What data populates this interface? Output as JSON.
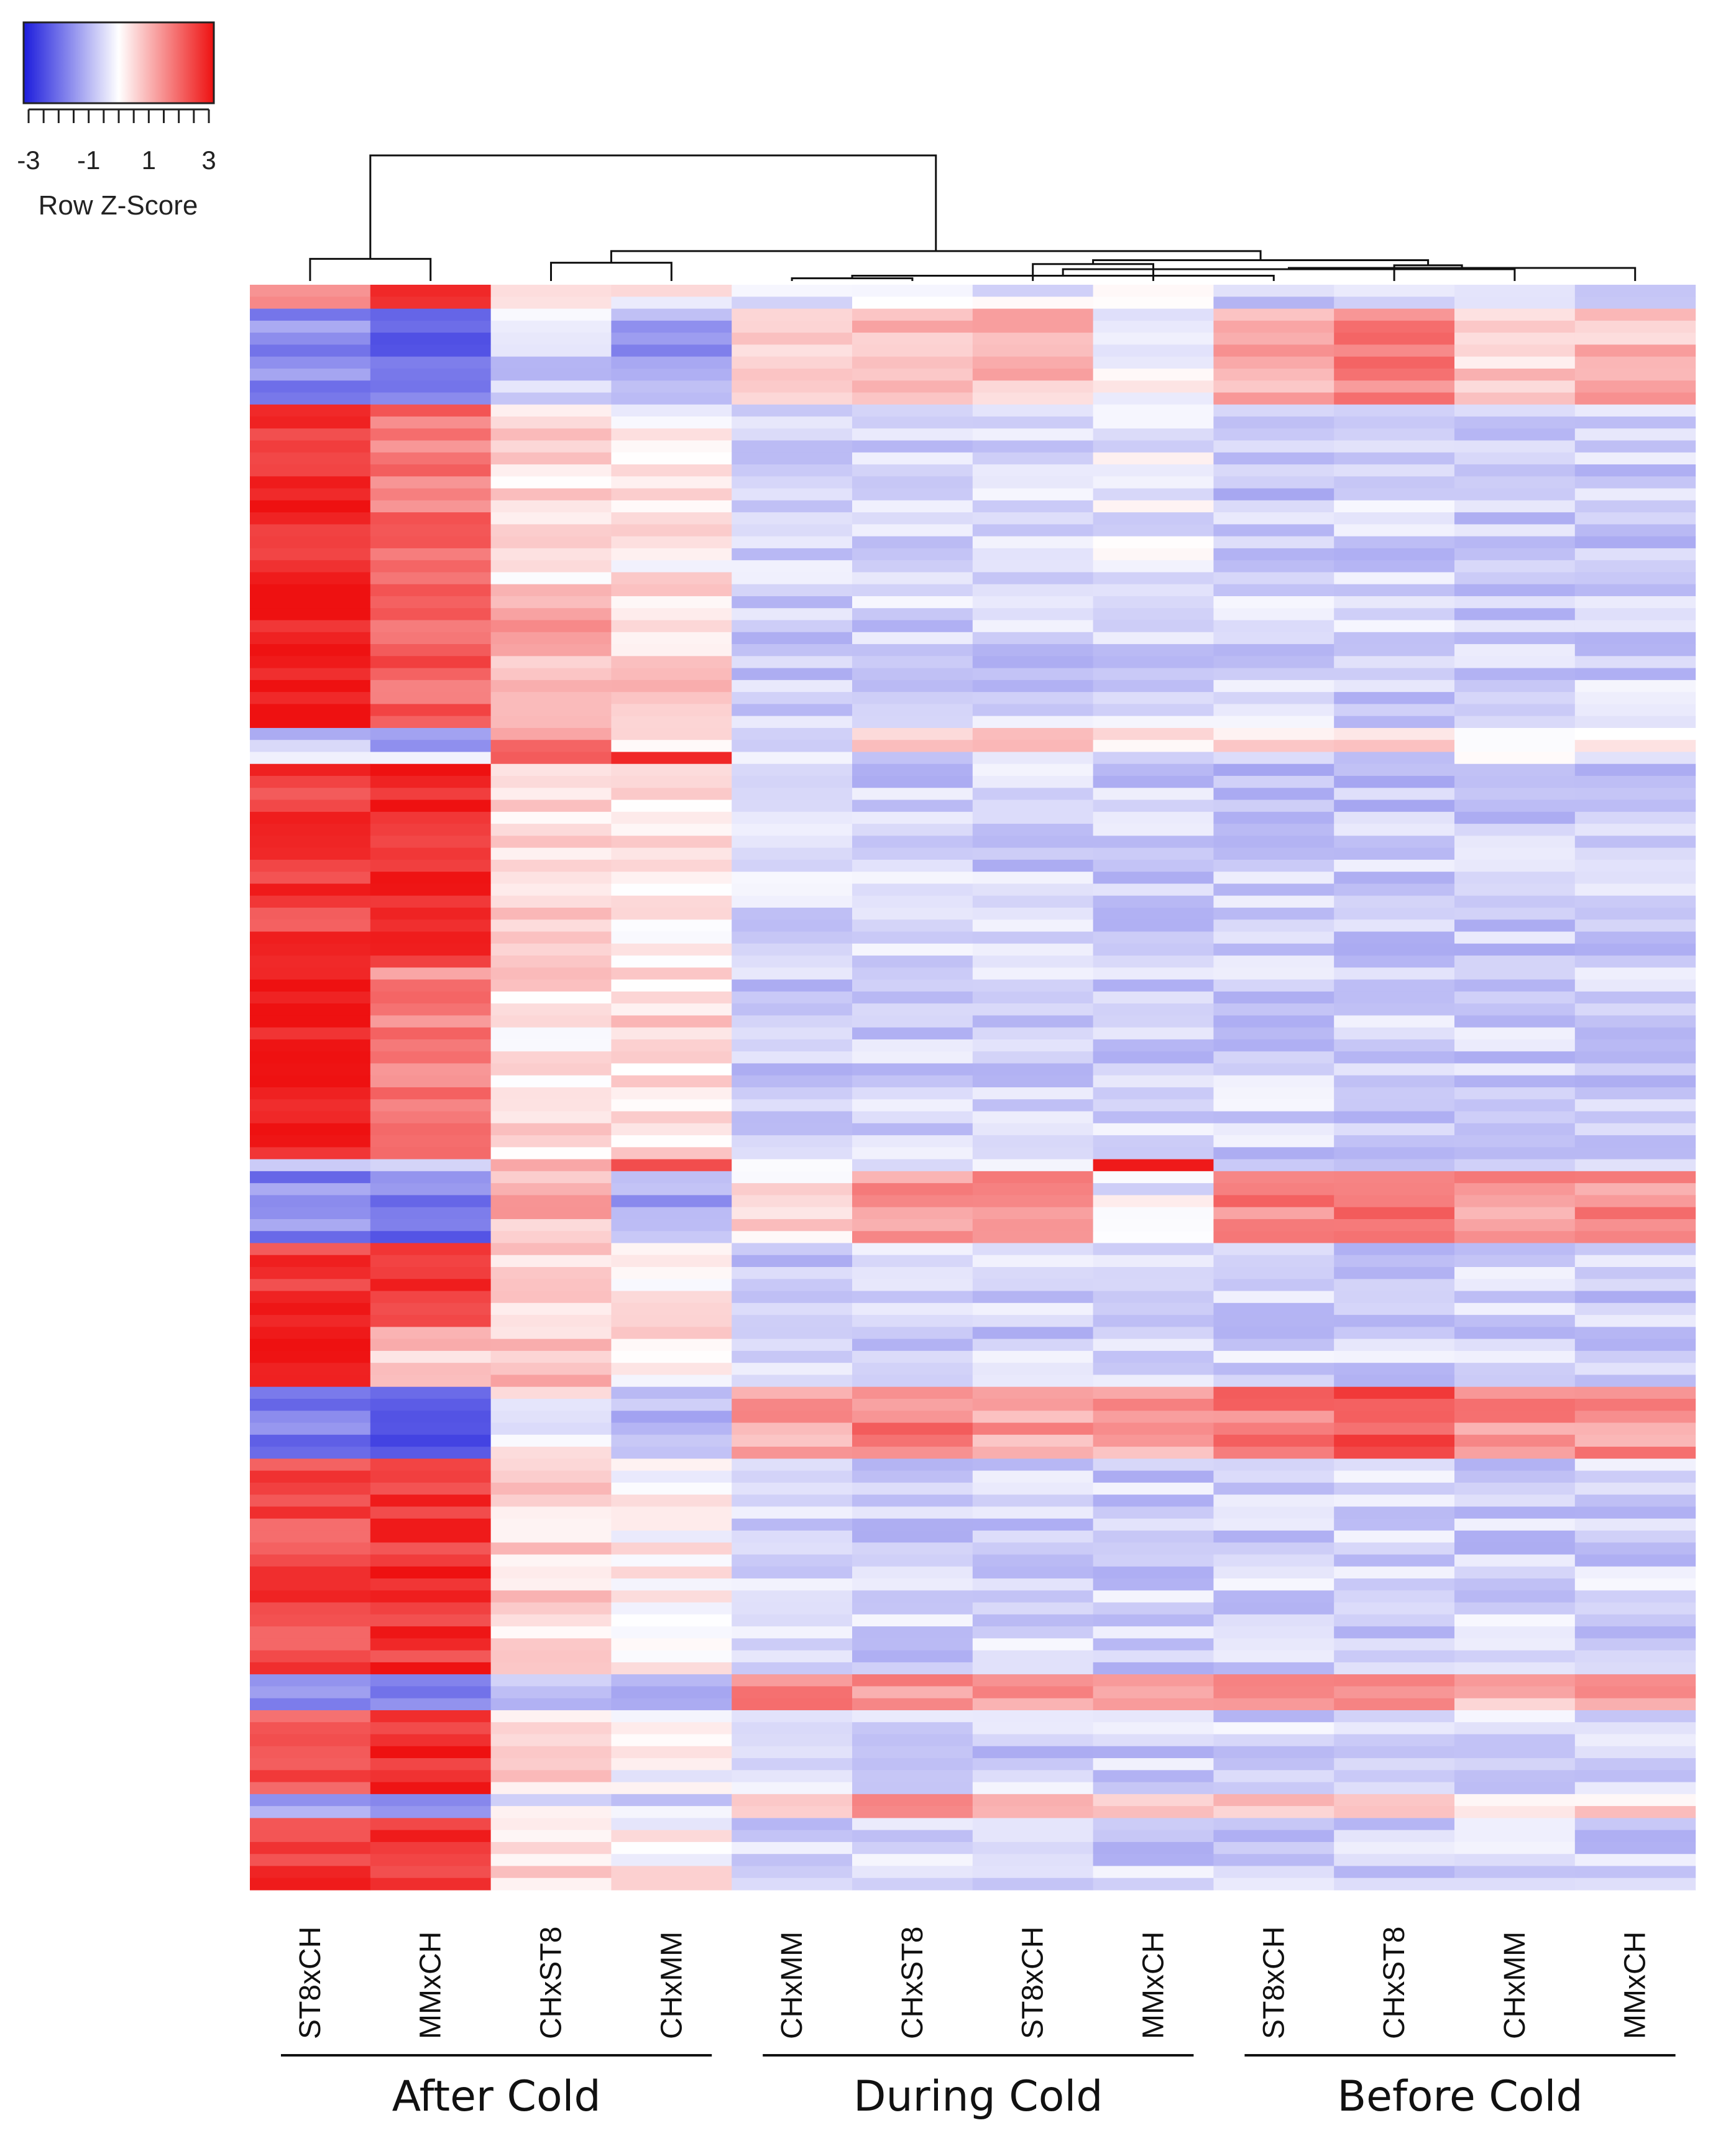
{
  "chart_data": {
    "type": "heatmap",
    "title": "",
    "color_key": {
      "title": "Row Z-Score",
      "tick_labels": [
        "-3",
        "-1",
        "1",
        "3"
      ],
      "ticks": [
        -3,
        -1,
        1,
        3
      ],
      "range": [
        -3,
        3
      ],
      "low_color": "#1c1cdc",
      "mid_color": "#ffffff",
      "high_color": "#ee1111"
    },
    "columns": [
      "ST8xCH",
      "MMxCH",
      "CHxST8",
      "CHxMM",
      "CHxMM",
      "CHxST8",
      "ST8xCH",
      "MMxCH",
      "ST8xCH",
      "CHxST8",
      "CHxMM",
      "MMxCH"
    ],
    "groups": [
      {
        "label": "After Cold",
        "columns": [
          0,
          1,
          2,
          3
        ]
      },
      {
        "label": "During Cold",
        "columns": [
          4,
          5,
          6,
          7
        ]
      },
      {
        "label": "Before Cold",
        "columns": [
          8,
          9,
          10,
          11
        ]
      }
    ],
    "row_count": 134,
    "blocks": [
      {
        "rows": [
          0,
          2
        ],
        "values": [
          1.2,
          2.9,
          0.3,
          0.0,
          -0.3,
          -0.3,
          -0.3,
          -0.3,
          -0.6,
          -0.6,
          -0.6,
          -0.6
        ]
      },
      {
        "rows": [
          2,
          10
        ],
        "values": [
          -1.6,
          -1.9,
          -0.5,
          -1.2,
          0.6,
          0.8,
          0.9,
          -0.1,
          1.1,
          1.5,
          0.5,
          0.9
        ]
      },
      {
        "rows": [
          10,
          25
        ],
        "values": [
          2.6,
          1.8,
          0.4,
          0.2,
          -0.5,
          -0.6,
          -0.5,
          -0.3,
          -0.7,
          -0.6,
          -0.6,
          -0.7
        ]
      },
      {
        "rows": [
          25,
          37
        ],
        "values": [
          2.9,
          2.0,
          1.0,
          0.6,
          -0.6,
          -0.6,
          -0.6,
          -0.6,
          -0.6,
          -0.6,
          -0.6,
          -0.6
        ]
      },
      {
        "rows": [
          37,
          39
        ],
        "values": [
          -0.9,
          -1.2,
          1.5,
          0.2,
          -0.4,
          0.9,
          1.2,
          0.2,
          0.5,
          0.8,
          -0.3,
          0.2
        ]
      },
      {
        "rows": [
          39,
          39
        ],
        "values": [
          -0.4,
          -0.6,
          1.8,
          2.9,
          -0.4,
          -0.4,
          -0.4,
          -0.4,
          -0.4,
          -0.4,
          -0.4,
          -0.4
        ]
      },
      {
        "rows": [
          39,
          50
        ],
        "values": [
          2.5,
          2.8,
          0.4,
          0.2,
          -0.6,
          -0.6,
          -0.6,
          -0.6,
          -0.7,
          -0.7,
          -0.7,
          -0.7
        ]
      },
      {
        "rows": [
          50,
          56
        ],
        "values": [
          2.4,
          2.6,
          0.5,
          0.1,
          -0.6,
          -0.6,
          -0.6,
          -0.6,
          -0.7,
          -0.7,
          -0.7,
          -0.7
        ]
      },
      {
        "rows": [
          56,
          72
        ],
        "values": [
          3.0,
          1.6,
          0.4,
          0.5,
          -0.6,
          -0.6,
          -0.6,
          -0.6,
          -0.6,
          -0.6,
          -0.6,
          -0.6
        ]
      },
      {
        "rows": [
          72,
          73
        ],
        "values": [
          -0.3,
          -0.6,
          1.2,
          2.4,
          -0.3,
          -0.3,
          -0.3,
          2.8,
          -0.4,
          -0.4,
          -0.4,
          -0.4
        ]
      },
      {
        "rows": [
          73,
          79
        ],
        "values": [
          -1.6,
          -1.8,
          0.9,
          -1.2,
          0.4,
          1.4,
          1.3,
          -0.2,
          1.6,
          1.8,
          1.2,
          1.4
        ]
      },
      {
        "rows": [
          79,
          86
        ],
        "values": [
          2.5,
          2.4,
          0.7,
          0.2,
          -0.6,
          -0.6,
          -0.6,
          -0.6,
          -0.6,
          -0.6,
          -0.6,
          -0.6
        ]
      },
      {
        "rows": [
          86,
          91
        ],
        "values": [
          3.0,
          0.6,
          0.8,
          0.3,
          -0.6,
          -0.6,
          -0.6,
          -0.6,
          -0.6,
          -0.6,
          -0.6,
          -0.6
        ]
      },
      {
        "rows": [
          91,
          97
        ],
        "values": [
          -1.7,
          -2.1,
          0.0,
          -1.0,
          1.1,
          1.6,
          1.2,
          1.2,
          1.6,
          2.2,
          1.4,
          1.4
        ]
      },
      {
        "rows": [
          97,
          115
        ],
        "values": [
          2.3,
          2.6,
          0.5,
          0.2,
          -0.6,
          -0.6,
          -0.6,
          -0.6,
          -0.6,
          -0.6,
          -0.6,
          -0.6
        ]
      },
      {
        "rows": [
          115,
          118
        ],
        "values": [
          -1.6,
          -1.8,
          -0.6,
          -0.9,
          1.4,
          1.3,
          1.1,
          1.0,
          1.3,
          1.8,
          1.0,
          1.2
        ]
      },
      {
        "rows": [
          118,
          125
        ],
        "values": [
          2.2,
          2.7,
          0.4,
          0.1,
          -0.6,
          -0.6,
          -0.6,
          -0.6,
          -0.6,
          -0.6,
          -0.6,
          -0.6
        ]
      },
      {
        "rows": [
          125,
          127
        ],
        "values": [
          -1.4,
          -1.2,
          -0.3,
          -0.5,
          0.8,
          1.2,
          1.3,
          0.6,
          0.6,
          0.9,
          0.5,
          0.6
        ]
      },
      {
        "rows": [
          127,
          134
        ],
        "values": [
          2.5,
          2.7,
          0.5,
          0.1,
          -0.6,
          -0.6,
          -0.6,
          -0.6,
          -0.6,
          -0.6,
          -0.6,
          -0.6
        ]
      }
    ],
    "dendrogram": {
      "merges": [
        {
          "left": "c4",
          "right": "c5",
          "height": 0.05
        },
        {
          "left": "c0",
          "right": "c1",
          "height": 0.2
        },
        {
          "left": "c2",
          "right": "c3",
          "height": 0.17
        },
        {
          "left": "c6",
          "right": "c7",
          "height": 0.16
        },
        {
          "left": "c8",
          "right": "m0",
          "height": 0.07
        },
        {
          "left": "c10",
          "right": "m4",
          "height": 0.12
        },
        {
          "left": "c11",
          "right": "m5",
          "height": 0.13
        },
        {
          "left": "c9",
          "right": "m6",
          "height": 0.15
        },
        {
          "left": "m3",
          "right": "m7",
          "height": 0.19
        },
        {
          "left": "m2",
          "right": "m8",
          "height": 0.26
        },
        {
          "left": "m1",
          "right": "m9",
          "height": 1.0
        }
      ]
    }
  }
}
